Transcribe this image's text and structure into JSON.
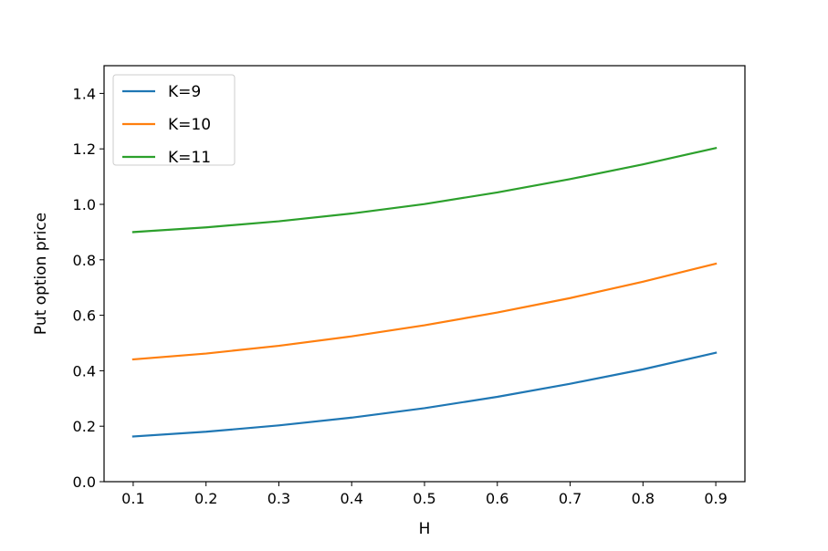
{
  "chart_data": {
    "type": "line",
    "xlabel": "H",
    "ylabel": "Put option price",
    "xlim": [
      0.06,
      0.94
    ],
    "ylim": [
      0.0,
      1.5
    ],
    "x": [
      0.1,
      0.2,
      0.3,
      0.4,
      0.5,
      0.6,
      0.7,
      0.8,
      0.9
    ],
    "xticks": [
      "0.1",
      "0.2",
      "0.3",
      "0.4",
      "0.5",
      "0.6",
      "0.7",
      "0.8",
      "0.9"
    ],
    "yticks": [
      "0.0",
      "0.2",
      "0.4",
      "0.6",
      "0.8",
      "1.0",
      "1.2",
      "1.4"
    ],
    "grid": false,
    "legend_position": "top-left",
    "series": [
      {
        "name": "K=9",
        "color": "#1f77b4",
        "values": [
          0.163,
          0.18,
          0.203,
          0.231,
          0.265,
          0.306,
          0.353,
          0.405,
          0.465
        ]
      },
      {
        "name": "K=10",
        "color": "#ff7f0e",
        "values": [
          0.441,
          0.462,
          0.49,
          0.524,
          0.564,
          0.61,
          0.662,
          0.721,
          0.786
        ]
      },
      {
        "name": "K=11",
        "color": "#2ca02c",
        "values": [
          0.9,
          0.917,
          0.939,
          0.967,
          1.001,
          1.043,
          1.091,
          1.144,
          1.203
        ]
      }
    ]
  }
}
